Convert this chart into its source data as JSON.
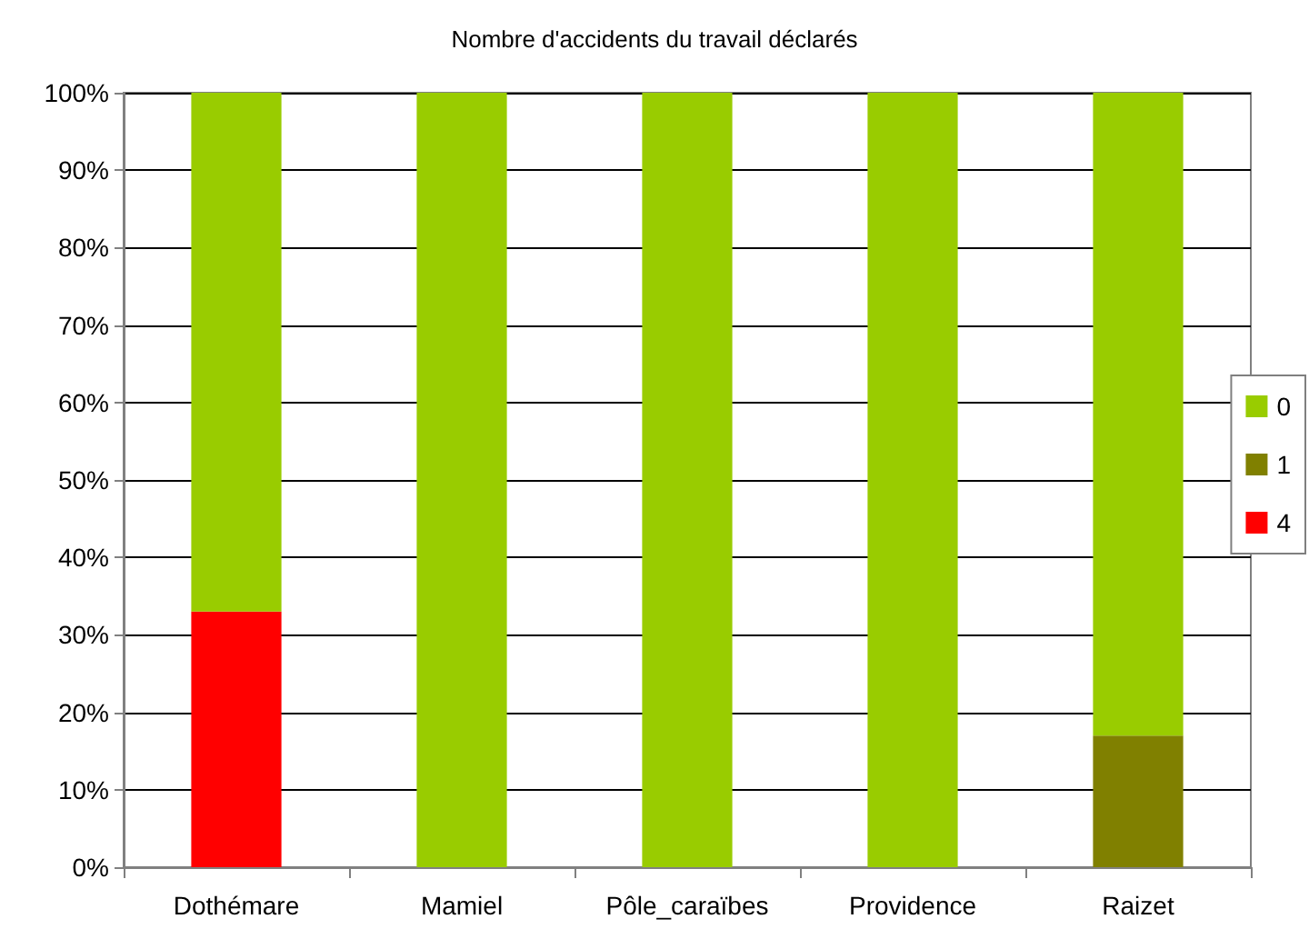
{
  "chart_data": {
    "type": "bar",
    "title": "Nombre d'accidents du travail déclarés",
    "categories": [
      "Dothémare",
      "Mamiel",
      "Pôle_caraïbes",
      "Providence",
      "Raizet"
    ],
    "stacked": true,
    "series": [
      {
        "name": "4",
        "color": "#ff0000",
        "values": [
          33,
          0,
          0,
          0,
          0
        ]
      },
      {
        "name": "1",
        "color": "#808000",
        "values": [
          0,
          0,
          0,
          0,
          17
        ]
      },
      {
        "name": "0",
        "color": "#99cc00",
        "values": [
          67,
          100,
          100,
          100,
          83
        ]
      }
    ],
    "ylim": [
      0,
      100
    ],
    "yticks": [
      {
        "value": 0,
        "label": "0%"
      },
      {
        "value": 10,
        "label": "10%"
      },
      {
        "value": 20,
        "label": "20%"
      },
      {
        "value": 30,
        "label": "30%"
      },
      {
        "value": 40,
        "label": "40%"
      },
      {
        "value": 50,
        "label": "50%"
      },
      {
        "value": 60,
        "label": "60%"
      },
      {
        "value": 70,
        "label": "70%"
      },
      {
        "value": 80,
        "label": "80%"
      },
      {
        "value": 90,
        "label": "90%"
      },
      {
        "value": 100,
        "label": "100%"
      }
    ],
    "grid": "y",
    "legend": "right"
  }
}
